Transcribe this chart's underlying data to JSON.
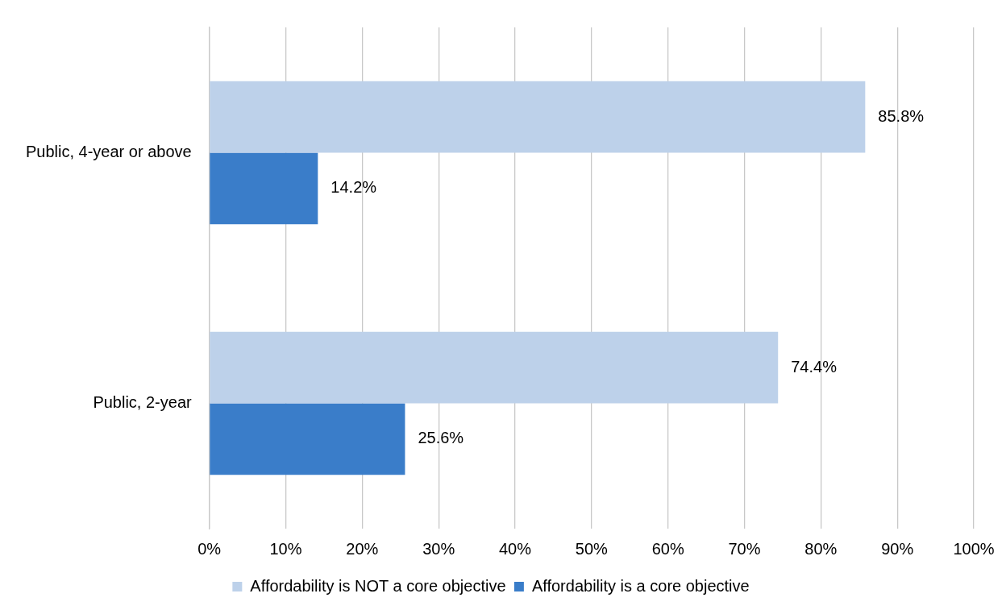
{
  "chart_data": {
    "type": "bar",
    "orientation": "horizontal",
    "categories": [
      "Public, 4-year or above",
      "Public, 2-year"
    ],
    "series": [
      {
        "name": "Affordability is NOT a core objective",
        "color": "#bdd1ea",
        "values": [
          85.8,
          74.4
        ],
        "value_labels": [
          "85.8%",
          "74.4%"
        ]
      },
      {
        "name": "Affordability is a core objective",
        "color": "#3a7dc9",
        "values": [
          14.2,
          25.6
        ],
        "value_labels": [
          "14.2%",
          "25.6%"
        ]
      }
    ],
    "xlim": [
      0,
      100
    ],
    "xticks": [
      {
        "value": 0,
        "label": "0%"
      },
      {
        "value": 10,
        "label": "10%"
      },
      {
        "value": 20,
        "label": "20%"
      },
      {
        "value": 30,
        "label": "30%"
      },
      {
        "value": 40,
        "label": "40%"
      },
      {
        "value": 50,
        "label": "50%"
      },
      {
        "value": 60,
        "label": "60%"
      },
      {
        "value": 70,
        "label": "70%"
      },
      {
        "value": 80,
        "label": "80%"
      },
      {
        "value": 90,
        "label": "90%"
      },
      {
        "value": 100,
        "label": "100%"
      }
    ],
    "grid": "x",
    "legend": "bottom"
  }
}
